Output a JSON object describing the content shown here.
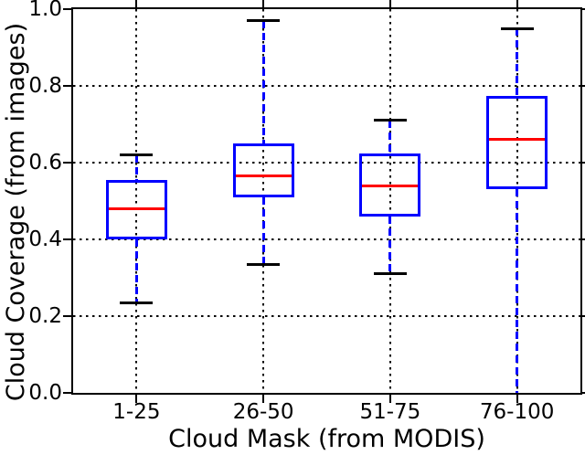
{
  "chart_data": {
    "type": "boxplot",
    "title": "",
    "xlabel": "Cloud Mask (from MODIS)",
    "ylabel": "Cloud Coverage (from images)",
    "categories": [
      "1-25",
      "26-50",
      "51-75",
      "76-100"
    ],
    "ylim": [
      0.0,
      1.0
    ],
    "yticks": [
      0.0,
      0.2,
      0.4,
      0.6,
      0.8,
      1.0
    ],
    "ytick_labels": [
      "0.0",
      "0.2",
      "0.4",
      "0.6",
      "0.8",
      "1.0"
    ],
    "grid": {
      "horizontal": true,
      "vertical": true,
      "style": "dotted",
      "color": "#000000"
    },
    "legend": null,
    "series": [
      {
        "category": "1-25",
        "whisker_low": 0.235,
        "q1": 0.4,
        "median": 0.48,
        "q3": 0.555,
        "whisker_high": 0.62
      },
      {
        "category": "26-50",
        "whisker_low": 0.335,
        "q1": 0.51,
        "median": 0.565,
        "q3": 0.65,
        "whisker_high": 0.97
      },
      {
        "category": "51-75",
        "whisker_low": 0.31,
        "q1": 0.46,
        "median": 0.54,
        "q3": 0.625,
        "whisker_high": 0.71
      },
      {
        "category": "76-100",
        "whisker_low": 0.0,
        "q1": 0.53,
        "median": 0.66,
        "q3": 0.775,
        "whisker_high": 0.95
      }
    ],
    "colors": {
      "box": "#0000ff",
      "median": "#ff0000",
      "whisker": "#0000ff",
      "cap": "#000000",
      "grid": "#000000",
      "axis": "#000000",
      "text": "#000000",
      "background": "#ffffff"
    }
  }
}
